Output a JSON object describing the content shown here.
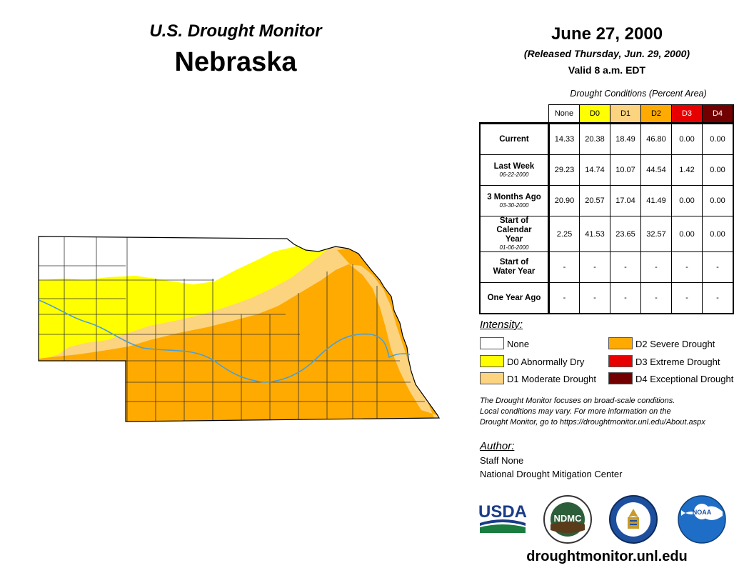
{
  "header": {
    "monitor_title": "U.S. Drought Monitor",
    "state": "Nebraska",
    "date": "June 27, 2000",
    "released": "(Released Thursday, Jun. 29, 2000)",
    "valid": "Valid 8 a.m. EDT"
  },
  "table": {
    "caption": "Drought Conditions (Percent Area)",
    "columns": [
      "None",
      "D0",
      "D1",
      "D2",
      "D3",
      "D4"
    ],
    "rows": [
      {
        "label": "Current",
        "date": "",
        "values": [
          "14.33",
          "20.38",
          "18.49",
          "46.80",
          "0.00",
          "0.00"
        ]
      },
      {
        "label": "Last Week",
        "date": "06-22-2000",
        "values": [
          "29.23",
          "14.74",
          "10.07",
          "44.54",
          "1.42",
          "0.00"
        ]
      },
      {
        "label": "3 Months Ago",
        "date": "03-30-2000",
        "values": [
          "20.90",
          "20.57",
          "17.04",
          "41.49",
          "0.00",
          "0.00"
        ]
      },
      {
        "label": "Start of Calendar Year",
        "date": "01-06-2000",
        "values": [
          "2.25",
          "41.53",
          "23.65",
          "32.57",
          "0.00",
          "0.00"
        ]
      },
      {
        "label": "Start of Water Year",
        "date": "",
        "values": [
          "-",
          "-",
          "-",
          "-",
          "-",
          "-"
        ]
      },
      {
        "label": "One Year Ago",
        "date": "",
        "values": [
          "-",
          "-",
          "-",
          "-",
          "-",
          "-"
        ]
      }
    ]
  },
  "legend": {
    "title": "Intensity:",
    "items": [
      {
        "label": "None",
        "color": "#ffffff"
      },
      {
        "label": "D0 Abnormally Dry",
        "color": "#ffff00"
      },
      {
        "label": "D1 Moderate Drought",
        "color": "#fcd37f"
      },
      {
        "label": "D2 Severe Drought",
        "color": "#ffaa00"
      },
      {
        "label": "D3 Extreme Drought",
        "color": "#e60000"
      },
      {
        "label": "D4 Exceptional Drought",
        "color": "#730000"
      }
    ]
  },
  "disclaimer": {
    "line1": "The Drought Monitor focuses on broad-scale conditions.",
    "line2": "Local conditions may vary. For more information on the",
    "line3": "Drought Monitor, go to https://droughtmonitor.unl.edu/About.aspx"
  },
  "author": {
    "title": "Author:",
    "name": "Staff None",
    "org": "National Drought Mitigation Center"
  },
  "logos": {
    "usda": "USDA",
    "ndmc": "NDMC",
    "noaa": "NOAA"
  },
  "website": "droughtmonitor.unl.edu",
  "colors": {
    "none": "#ffffff",
    "d0": "#ffff00",
    "d1": "#fcd37f",
    "d2": "#ffaa00",
    "d3": "#e60000",
    "d4": "#730000",
    "river": "#4a9fd8"
  }
}
